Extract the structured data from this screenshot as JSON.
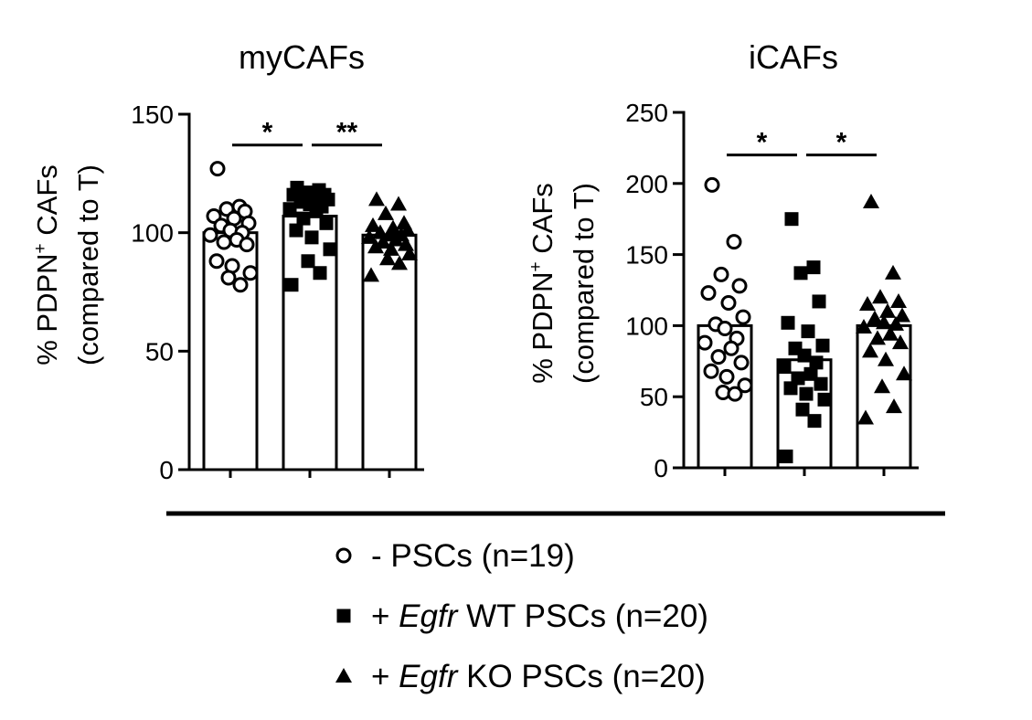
{
  "colors": {
    "ink": "#000000",
    "background": "#ffffff"
  },
  "legend": {
    "items": [
      {
        "marker": "open-circle",
        "prefix": "- ",
        "italic": "",
        "suffix": "PSCs (n=19)"
      },
      {
        "marker": "filled-square",
        "prefix": "+ ",
        "italic": "Egfr",
        "suffix": " WT PSCs (n=20)"
      },
      {
        "marker": "filled-triangle",
        "prefix": "+ ",
        "italic": "Egfr",
        "suffix": " KO PSCs (n=20)"
      }
    ]
  },
  "chart_data": [
    {
      "type": "bar",
      "title": "myCAFs",
      "ylabel_line1_pre": "% PDPN",
      "ylabel_sup": "+",
      "ylabel_line1_post": " CAFs",
      "ylabel_line2": "(compared to T)",
      "ylim": [
        0,
        150
      ],
      "yticks": [
        0,
        50,
        100,
        150
      ],
      "grid": false,
      "significance": [
        {
          "from": 0,
          "to": 1,
          "label": "*",
          "y": 137
        },
        {
          "from": 1,
          "to": 2,
          "label": "**",
          "y": 137
        }
      ],
      "series": [
        {
          "marker": "open-circle",
          "mean": 100,
          "points": [
            127,
            111,
            110,
            109,
            107,
            106,
            104,
            103,
            101,
            100,
            99,
            97,
            96,
            95,
            88,
            86,
            83,
            81,
            78
          ]
        },
        {
          "marker": "filled-square",
          "mean": 107,
          "points": [
            119,
            118,
            117,
            116,
            116,
            115,
            114,
            113,
            112,
            111,
            110,
            109,
            106,
            104,
            101,
            98,
            93,
            88,
            83,
            78
          ]
        },
        {
          "marker": "filled-triangle",
          "mean": 99,
          "points": [
            114,
            112,
            108,
            104,
            103,
            102,
            101,
            100,
            99,
            99,
            98,
            97,
            96,
            95,
            94,
            93,
            91,
            89,
            87,
            82
          ]
        }
      ]
    },
    {
      "type": "bar",
      "title": "iCAFs",
      "ylabel_line1_pre": "% PDPN",
      "ylabel_sup": "+",
      "ylabel_line1_post": " CAFs",
      "ylabel_line2": "(compared to T)",
      "ylim": [
        0,
        250
      ],
      "yticks": [
        0,
        50,
        100,
        150,
        200,
        250
      ],
      "grid": false,
      "significance": [
        {
          "from": 0,
          "to": 1,
          "label": "*",
          "y": 220
        },
        {
          "from": 1,
          "to": 2,
          "label": "*",
          "y": 220
        }
      ],
      "series": [
        {
          "marker": "open-circle",
          "mean": 100,
          "points": [
            199,
            159,
            136,
            128,
            123,
            116,
            106,
            101,
            98,
            91,
            88,
            84,
            78,
            74,
            68,
            64,
            58,
            53,
            52
          ]
        },
        {
          "marker": "filled-square",
          "mean": 76,
          "points": [
            175,
            141,
            137,
            117,
            102,
            96,
            86,
            84,
            79,
            74,
            71,
            66,
            63,
            59,
            56,
            52,
            48,
            41,
            33,
            8
          ]
        },
        {
          "marker": "filled-triangle",
          "mean": 100,
          "points": [
            187,
            137,
            120,
            117,
            115,
            110,
            107,
            105,
            102,
            101,
            99,
            94,
            91,
            88,
            82,
            76,
            66,
            57,
            43,
            35
          ]
        }
      ]
    }
  ]
}
